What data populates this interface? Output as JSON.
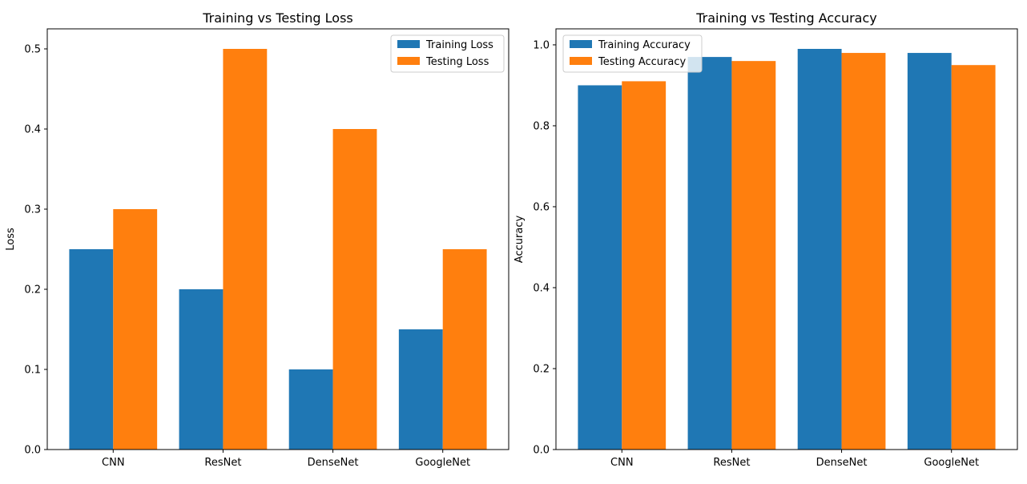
{
  "colors": {
    "training": "#1f77b4",
    "testing": "#ff7f0e"
  },
  "chart_data": [
    {
      "type": "bar",
      "title": "Training vs Testing Loss",
      "xlabel": "",
      "ylabel": "Loss",
      "categories": [
        "CNN",
        "ResNet",
        "DenseNet",
        "GoogleNet"
      ],
      "series": [
        {
          "name": "Training Loss",
          "values": [
            0.25,
            0.2,
            0.1,
            0.15
          ]
        },
        {
          "name": "Testing Loss",
          "values": [
            0.3,
            0.5,
            0.4,
            0.25
          ]
        }
      ],
      "ylim": [
        0,
        0.525
      ],
      "yticks": [
        0.0,
        0.1,
        0.2,
        0.3,
        0.4,
        0.5
      ],
      "ytick_labels": [
        "0.0",
        "0.1",
        "0.2",
        "0.3",
        "0.4",
        "0.5"
      ],
      "legend_position": "upper right",
      "grid": false
    },
    {
      "type": "bar",
      "title": "Training vs Testing Accuracy",
      "xlabel": "",
      "ylabel": "Accuracy",
      "categories": [
        "CNN",
        "ResNet",
        "DenseNet",
        "GoogleNet"
      ],
      "series": [
        {
          "name": "Training Accuracy",
          "values": [
            0.9,
            0.97,
            0.99,
            0.98
          ]
        },
        {
          "name": "Testing Accuracy",
          "values": [
            0.91,
            0.96,
            0.98,
            0.95
          ]
        }
      ],
      "ylim": [
        0,
        1.0395
      ],
      "yticks": [
        0.0,
        0.2,
        0.4,
        0.6,
        0.8,
        1.0
      ],
      "ytick_labels": [
        "0.0",
        "0.2",
        "0.4",
        "0.6",
        "0.8",
        "1.0"
      ],
      "legend_position": "upper left",
      "grid": false
    }
  ]
}
